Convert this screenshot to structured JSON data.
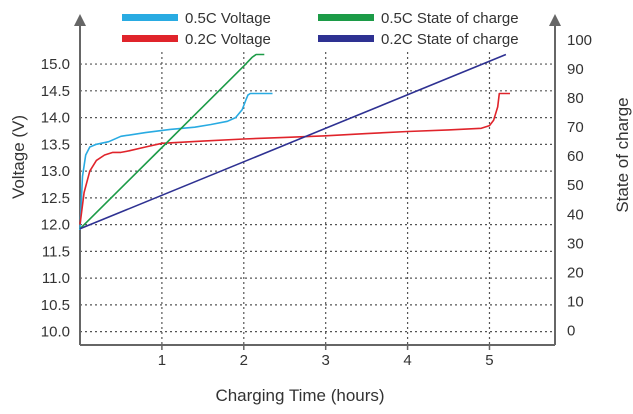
{
  "chart_data": {
    "type": "line",
    "xlabel": "Charging Time (hours)",
    "ylabel_left": "Voltage (V)",
    "ylabel_right": "State of charge",
    "x_ticks": [
      1,
      2,
      3,
      4,
      5
    ],
    "xlim": [
      0,
      5.8
    ],
    "left_ticks": [
      10.0,
      10.5,
      11.0,
      11.5,
      12.0,
      12.5,
      13.0,
      13.5,
      14.0,
      14.5,
      15.0
    ],
    "left_tick_labels": [
      "10.0",
      "10.5",
      "11.0",
      "11.5",
      "12.0",
      "12.5",
      "13.0",
      "13.5",
      "14.0",
      "14.5",
      "15.0"
    ],
    "ylim_left": [
      9.75,
      15.45
    ],
    "right_ticks": [
      0,
      10,
      20,
      30,
      40,
      50,
      60,
      70,
      80,
      90,
      100
    ],
    "right_tick_labels": [
      "0",
      "10",
      "20",
      "30",
      "40",
      "50",
      "60",
      "70",
      "80",
      "90",
      "100"
    ],
    "ylim_right": [
      -5,
      100
    ],
    "grid": true,
    "legend": "top",
    "series": [
      {
        "name": "0.5C Voltage",
        "axis": "left",
        "color": "#29abe2",
        "x": [
          0.0,
          0.03,
          0.07,
          0.12,
          0.2,
          0.35,
          0.5,
          0.8,
          1.1,
          1.4,
          1.6,
          1.8,
          1.9,
          1.98,
          2.03,
          2.05,
          2.08,
          2.1,
          2.2,
          2.35
        ],
        "y": [
          11.9,
          12.9,
          13.3,
          13.45,
          13.5,
          13.55,
          13.65,
          13.72,
          13.78,
          13.82,
          13.87,
          13.93,
          14.0,
          14.15,
          14.35,
          14.42,
          14.45,
          14.45,
          14.45,
          14.45
        ]
      },
      {
        "name": "0.2C Voltage",
        "axis": "left",
        "color": "#e0242b",
        "x": [
          0.0,
          0.05,
          0.12,
          0.2,
          0.3,
          0.4,
          0.5,
          0.6,
          0.8,
          1.0,
          1.5,
          2.0,
          2.5,
          3.0,
          3.5,
          4.0,
          4.5,
          4.9,
          5.0,
          5.05,
          5.1,
          5.12,
          5.15,
          5.2,
          5.25
        ],
        "y": [
          12.0,
          12.6,
          13.0,
          13.2,
          13.3,
          13.35,
          13.35,
          13.38,
          13.45,
          13.52,
          13.56,
          13.6,
          13.63,
          13.66,
          13.7,
          13.74,
          13.77,
          13.8,
          13.85,
          13.95,
          14.2,
          14.45,
          14.45,
          14.45,
          14.45
        ]
      },
      {
        "name": "0.5C State of charge",
        "axis": "right",
        "color": "#1c9b47",
        "x": [
          0.0,
          1.0,
          2.0,
          2.1,
          2.15,
          2.25
        ],
        "y": [
          35,
          63,
          91,
          94,
          95,
          95
        ]
      },
      {
        "name": "0.2C State of charge",
        "axis": "right",
        "color": "#2e3192",
        "x": [
          0.0,
          5.2
        ],
        "y": [
          35,
          95
        ]
      }
    ]
  }
}
